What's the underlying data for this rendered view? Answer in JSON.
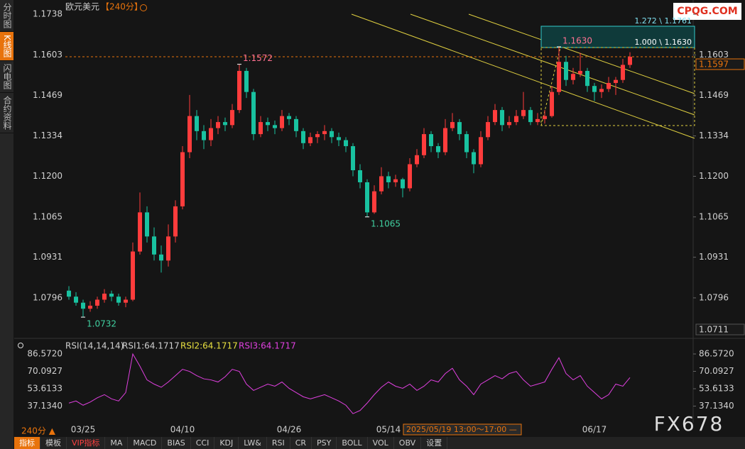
{
  "sidebar": [
    "分时图",
    "K线图",
    "闪电图",
    "合约资料"
  ],
  "header": {
    "symbol": "欧元美元",
    "period": "【240分】"
  },
  "watermarks": {
    "site": "CPQG.COM",
    "brand": "FX678"
  },
  "footer": {
    "period": "240分 ▲",
    "crosshair_time": "2025/05/19 13:00～17:00 —"
  },
  "toolbar": [
    "指标",
    "模板",
    "VIP指标",
    "MA",
    "MACD",
    "BIAS",
    "CCI",
    "KDJ",
    "LW&",
    "RSI",
    "CR",
    "PSY",
    "BOLL",
    "VOL",
    "OBV",
    "设置"
  ],
  "chart_data": [
    {
      "type": "candlestick",
      "up_color": "#ff3c3c",
      "down_color": "#19c2a0",
      "categories": [
        null,
        null,
        "03/25",
        null,
        null,
        null,
        null,
        null,
        null,
        null,
        null,
        null,
        null,
        null,
        null,
        null,
        "04/10",
        null,
        null,
        null,
        null,
        null,
        null,
        null,
        null,
        null,
        null,
        null,
        null,
        null,
        null,
        "04/26",
        null,
        null,
        null,
        null,
        null,
        null,
        null,
        null,
        null,
        null,
        null,
        null,
        null,
        "05/14",
        null,
        null,
        null,
        null,
        null,
        null,
        null,
        null,
        null,
        null,
        null,
        null,
        null,
        null,
        null,
        null,
        null,
        null,
        null,
        null,
        null,
        null,
        null,
        null,
        null,
        null,
        null,
        null,
        "06/17",
        null,
        null,
        null,
        null,
        null
      ],
      "ohlc": [
        [
          1.082,
          1.0835,
          1.079,
          1.08
        ],
        [
          1.08,
          1.0815,
          1.077,
          1.078
        ],
        [
          1.078,
          1.079,
          1.0732,
          1.076
        ],
        [
          1.076,
          1.0785,
          1.075,
          1.077
        ],
        [
          1.077,
          1.08,
          1.076,
          1.079
        ],
        [
          1.079,
          1.0825,
          1.078,
          1.081
        ],
        [
          1.081,
          1.082,
          1.0785,
          1.08
        ],
        [
          1.08,
          1.081,
          1.077,
          1.078
        ],
        [
          1.078,
          1.08,
          1.0765,
          1.079
        ],
        [
          1.079,
          1.098,
          1.0785,
          1.095
        ],
        [
          1.095,
          1.1146,
          1.094,
          1.108
        ],
        [
          1.108,
          1.11,
          1.098,
          1.1
        ],
        [
          1.1,
          1.103,
          1.092,
          1.094
        ],
        [
          1.094,
          1.097,
          1.088,
          1.092
        ],
        [
          1.092,
          1.104,
          1.09,
          1.1
        ],
        [
          1.1,
          1.112,
          1.098,
          1.11
        ],
        [
          1.11,
          1.13,
          1.109,
          1.128
        ],
        [
          1.128,
          1.147,
          1.126,
          1.14
        ],
        [
          1.14,
          1.142,
          1.132,
          1.135
        ],
        [
          1.135,
          1.137,
          1.129,
          1.132
        ],
        [
          1.132,
          1.139,
          1.13,
          1.136
        ],
        [
          1.136,
          1.14,
          1.134,
          1.138
        ],
        [
          1.138,
          1.1395,
          1.135,
          1.137
        ],
        [
          1.137,
          1.144,
          1.136,
          1.142
        ],
        [
          1.142,
          1.1572,
          1.141,
          1.155
        ],
        [
          1.155,
          1.156,
          1.146,
          1.148
        ],
        [
          1.148,
          1.149,
          1.132,
          1.134
        ],
        [
          1.134,
          1.14,
          1.133,
          1.138
        ],
        [
          1.138,
          1.1395,
          1.135,
          1.137
        ],
        [
          1.137,
          1.1385,
          1.134,
          1.136
        ],
        [
          1.136,
          1.142,
          1.135,
          1.14
        ],
        [
          1.14,
          1.141,
          1.137,
          1.139
        ],
        [
          1.139,
          1.14,
          1.133,
          1.135
        ],
        [
          1.135,
          1.136,
          1.129,
          1.131
        ],
        [
          1.131,
          1.1345,
          1.13,
          1.133
        ],
        [
          1.133,
          1.135,
          1.131,
          1.134
        ],
        [
          1.134,
          1.137,
          1.132,
          1.135
        ],
        [
          1.135,
          1.136,
          1.131,
          1.133
        ],
        [
          1.133,
          1.1345,
          1.13,
          1.132
        ],
        [
          1.132,
          1.133,
          1.128,
          1.13
        ],
        [
          1.13,
          1.131,
          1.12,
          1.122
        ],
        [
          1.122,
          1.124,
          1.116,
          1.118
        ],
        [
          1.118,
          1.119,
          1.1065,
          1.108
        ],
        [
          1.108,
          1.117,
          1.1075,
          1.115
        ],
        [
          1.115,
          1.123,
          1.114,
          1.12
        ],
        [
          1.12,
          1.1215,
          1.116,
          1.118
        ],
        [
          1.118,
          1.1205,
          1.1165,
          1.119
        ],
        [
          1.119,
          1.1195,
          1.113,
          1.116
        ],
        [
          1.116,
          1.126,
          1.115,
          1.124
        ],
        [
          1.124,
          1.129,
          1.123,
          1.127
        ],
        [
          1.127,
          1.136,
          1.126,
          1.134
        ],
        [
          1.134,
          1.135,
          1.128,
          1.13
        ],
        [
          1.13,
          1.131,
          1.126,
          1.128
        ],
        [
          1.128,
          1.139,
          1.127,
          1.136
        ],
        [
          1.136,
          1.141,
          1.135,
          1.138
        ],
        [
          1.138,
          1.139,
          1.132,
          1.134
        ],
        [
          1.134,
          1.135,
          1.126,
          1.128
        ],
        [
          1.128,
          1.129,
          1.121,
          1.124
        ],
        [
          1.124,
          1.135,
          1.123,
          1.133
        ],
        [
          1.133,
          1.14,
          1.132,
          1.138
        ],
        [
          1.138,
          1.144,
          1.137,
          1.142
        ],
        [
          1.142,
          1.143,
          1.135,
          1.137
        ],
        [
          1.137,
          1.14,
          1.136,
          1.138
        ],
        [
          1.138,
          1.142,
          1.137,
          1.14
        ],
        [
          1.14,
          1.148,
          1.139,
          1.142
        ],
        [
          1.142,
          1.143,
          1.137,
          1.138
        ],
        [
          1.138,
          1.141,
          1.137,
          1.139
        ],
        [
          1.139,
          1.142,
          1.1375,
          1.14
        ],
        [
          1.14,
          1.15,
          1.1395,
          1.148
        ],
        [
          1.148,
          1.163,
          1.147,
          1.158
        ],
        [
          1.158,
          1.16,
          1.15,
          1.152
        ],
        [
          1.152,
          1.156,
          1.1505,
          1.154
        ],
        [
          1.154,
          1.161,
          1.153,
          1.155
        ],
        [
          1.155,
          1.156,
          1.148,
          1.15
        ],
        [
          1.15,
          1.151,
          1.145,
          1.148
        ],
        [
          1.148,
          1.1505,
          1.146,
          1.149
        ],
        [
          1.149,
          1.153,
          1.148,
          1.151
        ],
        [
          1.151,
          1.153,
          1.147,
          1.152
        ],
        [
          1.152,
          1.159,
          1.151,
          1.157
        ],
        [
          1.157,
          1.1612,
          1.156,
          1.1597
        ]
      ],
      "ylim": [
        1.1762,
        1.0678
      ],
      "yticks": [
        1.1738,
        1.1603,
        1.1469,
        1.1334,
        {
          "value": 1.12,
          "label": "1.1200"
        },
        1.1065,
        1.0931,
        1.0796
      ],
      "extremes": [
        1.0732,
        1.1572,
        1.1065,
        {
          "value": 1.163,
          "label": "1.1630"
        }
      ],
      "last_price": 1.1597,
      "low_marker": 1.0711,
      "fib_labels": [
        "1.272 \\ 1.1761",
        "1.000 \\ 1.1630"
      ]
    },
    {
      "type": "line",
      "title": "RSI(14,14,14)",
      "series": [
        {
          "name": "RSI1:64.1717",
          "color": "#e040e0",
          "values": [
            40,
            42,
            38,
            41,
            45,
            48,
            44,
            42,
            50,
            86.572,
            75,
            62,
            58,
            55,
            60,
            66,
            72,
            70,
            66,
            63,
            62,
            60,
            65,
            72,
            70,
            58,
            52,
            55,
            58,
            56,
            60,
            54,
            50,
            46,
            44,
            46,
            48,
            45,
            42,
            38,
            30,
            33,
            40,
            48,
            55,
            60,
            56,
            54,
            58,
            52,
            56,
            62,
            60,
            68,
            73,
            62,
            56,
            48,
            58,
            62,
            66,
            63,
            68,
            70,
            62,
            56,
            58,
            60,
            72,
            83,
            68,
            62,
            66,
            56,
            50,
            44,
            48,
            58,
            56,
            64.1717
          ]
        }
      ],
      "legend_items": [
        {
          "label": "RSI2:64.1717",
          "color": "#e8e040"
        },
        {
          "label": "RSI3:64.1717",
          "color": "#e040e0"
        }
      ],
      "ylim": [
        98.0,
        25.4
      ],
      "yticks": [
        {
          "value": 86.572,
          "label": "86.5720"
        },
        70.0927,
        53.6133,
        {
          "value": 37.134,
          "label": "37.1340"
        }
      ]
    }
  ]
}
